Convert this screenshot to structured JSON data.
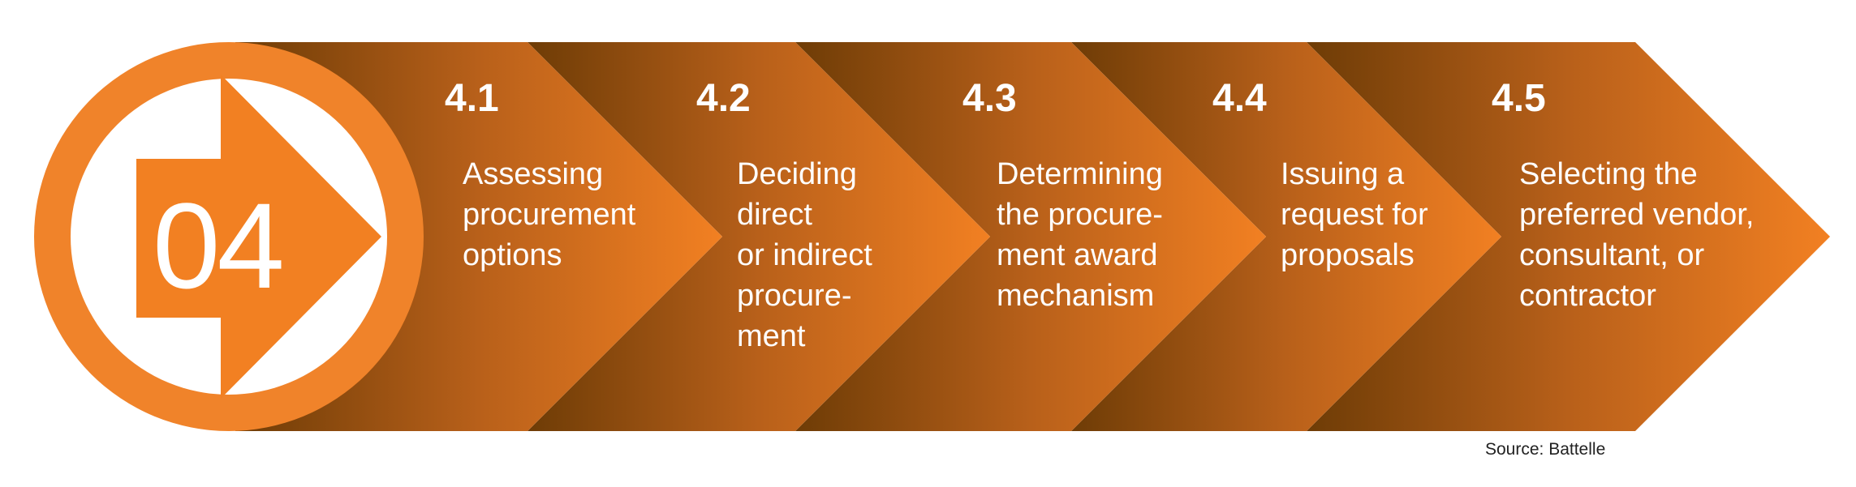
{
  "colors": {
    "orange": "#F28022",
    "dark_brown": "#6E3C06",
    "circle_orange": "#F0832A",
    "white": "#FFFFFF"
  },
  "badge": {
    "number": "04",
    "icon": "arrow-right-icon"
  },
  "steps": [
    {
      "number": "4.1",
      "text": "Assessing\nprocurement\noptions"
    },
    {
      "number": "4.2",
      "text": "Deciding\ndirect\nor indirect\nprocure-\nment"
    },
    {
      "number": "4.3",
      "text": "Determining\nthe procure-\nment award\nmechanism"
    },
    {
      "number": "4.4",
      "text": "Issuing a\nrequest for\nproposals"
    },
    {
      "number": "4.5",
      "text": "Selecting the\npreferred vendor,\nconsultant, or\ncontractor"
    }
  ],
  "source": "Source: Battelle"
}
